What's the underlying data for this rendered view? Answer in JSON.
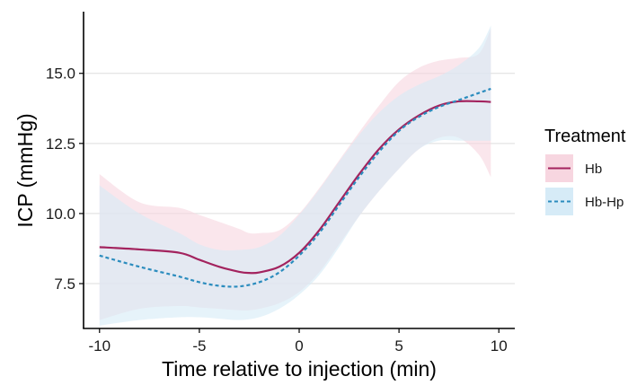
{
  "chart_data": {
    "type": "line",
    "xlabel": "Time relative to injection (min)",
    "ylabel": "ICP (mmHg)",
    "xlim": [
      -10.8,
      10.8
    ],
    "ylim": [
      5.9,
      17.2
    ],
    "x_ticks": [
      -10,
      -5,
      0,
      5,
      10
    ],
    "x_tick_labels": [
      "-10",
      "-5",
      "0",
      "5",
      "10"
    ],
    "y_ticks": [
      7.5,
      10.0,
      12.5,
      15.0
    ],
    "y_tick_labels": [
      "7.5",
      "10.0",
      "12.5",
      "15.0"
    ],
    "grid": "horizontal major",
    "legend": {
      "title": "Treatment",
      "position": "right",
      "entries": [
        "Hb",
        "Hb-Hp"
      ]
    },
    "series": [
      {
        "name": "Hb",
        "color": "#a3235e",
        "band_color": "#f7d6e0",
        "line_style": "solid",
        "x": [
          -10,
          -8,
          -6,
          -5,
          -4,
          -3,
          -2.5,
          -2,
          -1,
          0,
          1,
          2,
          3,
          4,
          5,
          6,
          7,
          8,
          9,
          9.6
        ],
        "y": [
          8.8,
          8.72,
          8.6,
          8.35,
          8.1,
          7.92,
          7.88,
          7.9,
          8.1,
          8.6,
          9.4,
          10.4,
          11.4,
          12.3,
          13.0,
          13.5,
          13.85,
          14.0,
          14.0,
          13.98
        ],
        "lower": [
          6.2,
          6.6,
          6.7,
          6.65,
          6.6,
          6.55,
          6.55,
          6.6,
          6.8,
          7.2,
          7.9,
          8.9,
          9.9,
          10.8,
          11.6,
          12.3,
          12.7,
          12.7,
          12.1,
          11.3
        ],
        "upper": [
          11.4,
          10.4,
          10.2,
          9.95,
          9.7,
          9.45,
          9.3,
          9.3,
          9.4,
          10.0,
          10.9,
          11.9,
          12.9,
          13.85,
          14.7,
          15.2,
          15.45,
          15.55,
          15.7,
          16.6
        ]
      },
      {
        "name": "Hb-Hp",
        "color": "#2b8cbe",
        "band_color": "#d6ebf7",
        "line_style": "dashed",
        "x": [
          -10,
          -8,
          -6,
          -5,
          -4,
          -3,
          -2,
          -1,
          0,
          1,
          2,
          3,
          4,
          5,
          6,
          7,
          8,
          9,
          9.6
        ],
        "y": [
          8.5,
          8.1,
          7.75,
          7.55,
          7.42,
          7.4,
          7.55,
          7.9,
          8.5,
          9.3,
          10.3,
          11.3,
          12.2,
          12.95,
          13.45,
          13.8,
          14.05,
          14.3,
          14.45
        ],
        "lower": [
          6.0,
          6.2,
          6.3,
          6.3,
          6.25,
          6.2,
          6.3,
          6.6,
          7.1,
          7.8,
          8.8,
          9.9,
          10.8,
          11.6,
          12.3,
          12.6,
          12.6,
          12.6,
          12.6
        ],
        "upper": [
          11.0,
          10.0,
          9.3,
          8.9,
          8.7,
          8.7,
          8.8,
          9.2,
          9.95,
          10.85,
          11.85,
          12.8,
          13.6,
          14.2,
          14.6,
          14.9,
          15.3,
          15.9,
          16.7
        ]
      }
    ]
  }
}
